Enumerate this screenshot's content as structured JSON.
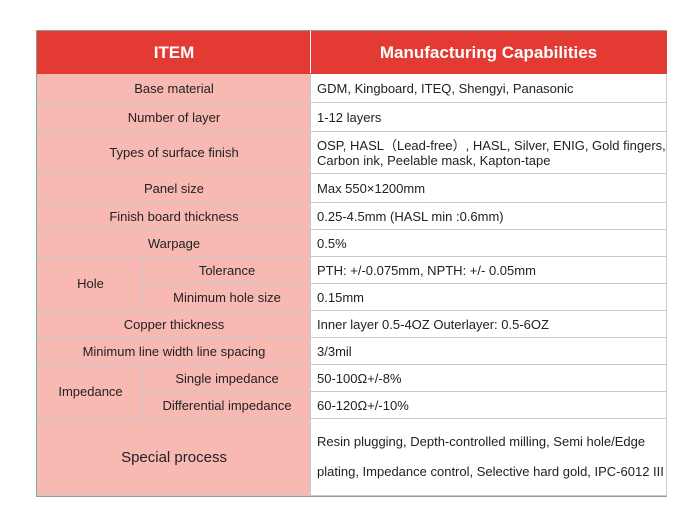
{
  "header": {
    "item": "ITEM",
    "capabilities": "Manufacturing Capabilities"
  },
  "rows": {
    "base_material": {
      "label": "Base material",
      "value": "GDM, Kingboard, ITEQ, Shengyi, Panasonic"
    },
    "number_of_layer": {
      "label": "Number of layer",
      "value": "1-12 layers"
    },
    "surface_finish": {
      "label": "Types of surface finish",
      "value_line1": "OSP, HASL（Lead-free）, HASL, Silver, ENIG, Gold fingers,",
      "value_line2": "Carbon ink, Peelable mask, Kapton-tape"
    },
    "panel_size": {
      "label": "Panel size",
      "value": "Max 550×1200mm"
    },
    "finish_thickness": {
      "label": "Finish board thickness",
      "value": "0.25-4.5mm (HASL min :0.6mm)"
    },
    "warpage": {
      "label": "Warpage",
      "value": "0.5%"
    },
    "hole": {
      "label": "Hole",
      "tolerance_label": "Tolerance",
      "tolerance_value": "PTH: +/-0.075mm, NPTH: +/- 0.05mm",
      "min_hole_label": "Minimum hole size",
      "min_hole_value": "0.15mm"
    },
    "copper_thickness": {
      "label": "Copper thickness",
      "value": "Inner layer 0.5-4OZ Outerlayer: 0.5-6OZ"
    },
    "line_width": {
      "label": "Minimum line width line spacing",
      "value": "3/3mil"
    },
    "impedance": {
      "label": "Impedance",
      "single_label": "Single impedance",
      "single_value": "50-100Ω+/-8%",
      "diff_label": "Differential impedance",
      "diff_value": "60-120Ω+/-10%"
    },
    "special_process": {
      "label": "Special process",
      "value_line1": "Resin plugging,  Depth-controlled milling,  Semi hole/Edge",
      "value_line2": "plating, Impedance control, Selective hard gold, IPC-6012  III"
    }
  },
  "colors": {
    "header_bg": "#e43a34",
    "label_bg": "#f7b9b2",
    "border": "#c9c9c9"
  }
}
